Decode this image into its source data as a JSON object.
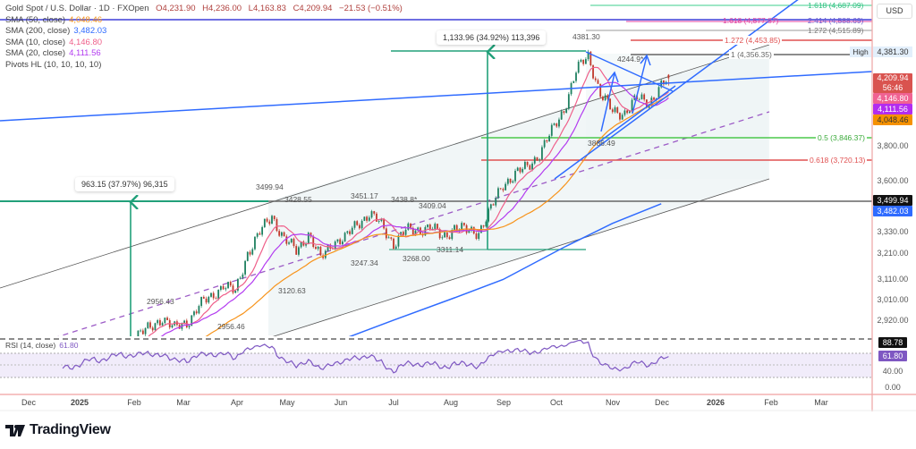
{
  "header": {
    "title": "Gold Spot / U.S. Dollar · 1D · FXOpen",
    "open": "O4,231.90",
    "high": "H4,236.00",
    "low": "L4,163.83",
    "close": "C4,209.94",
    "change": "−21.53 (−0.51%)"
  },
  "indicators": [
    {
      "name": "SMA (50, close)",
      "value": "4,048.46",
      "color": "#f7931a"
    },
    {
      "name": "SMA (200, close)",
      "value": "3,482.03",
      "color": "#2f6bff"
    },
    {
      "name": "SMA (10, close)",
      "value": "4,146.80",
      "color": "#ef5f8a"
    },
    {
      "name": "SMA (20, close)",
      "value": "4,111.56",
      "color": "#b33cf0"
    },
    {
      "name": "Pivots HL (10, 10, 10, 10)",
      "value": "",
      "color": "#444"
    }
  ],
  "currency": "USD",
  "price_axis": {
    "ticks": [
      "3,800.00",
      "3,600.00",
      "3,330.00",
      "3,210.00",
      "3,110.00",
      "3,010.00",
      "2,920.00"
    ],
    "tags": {
      "high": "4,381.30",
      "high_label": "High",
      "last": "4,209.94",
      "countdown": "56:46",
      "sma10": "4,146.80",
      "sma20": "4,111.56",
      "sma50": "4,048.46",
      "level": "3,499.94",
      "sma200": "3,482.03"
    }
  },
  "rsi": {
    "label": "RSI (14, close)",
    "value": "61.80",
    "max_tag": "88.78",
    "ticks": [
      "40.00",
      "0.00"
    ]
  },
  "time_axis": [
    "Dec",
    "2025",
    "Feb",
    "Mar",
    "Apr",
    "May",
    "Jun",
    "Jul",
    "Aug",
    "Sep",
    "Oct",
    "Nov",
    "Dec",
    "2026",
    "Feb",
    "Mar"
  ],
  "annotations": {
    "measure_1": "1,133.96 (34.92%) 113,396",
    "measure_2": "963.15 (37.97%) 96,315",
    "pivots": [
      "4381.30",
      "4244.9*",
      "3886.49",
      "3499.94",
      "3428.55",
      "3451.17",
      "3438.8*",
      "3409.04",
      "3311.14",
      "3268.00",
      "3247.34",
      "3120.63",
      "2956.43",
      "2956.46"
    ],
    "fibs": {
      "f1618g": "1.618 (4,687.09)",
      "f1618p": "1.618 (4,577.87)",
      "f2414": "2.414 (4,588.69)",
      "f1272g": "1.272 (4,515.89)",
      "f1272r": "1.272 (4,453.85)",
      "f1": "1 (4,356.35)",
      "f05": "0.5 (3,846.37)",
      "f0618": "0.618 (3,720.13)"
    }
  },
  "colors": {
    "up": "#1e8060",
    "down": "#c0392b",
    "rsi": "#7e57c2",
    "measure": "#22a07a",
    "trend": "#2f6bff"
  },
  "brand": "TradingView",
  "chart_data": {
    "type": "candlestick",
    "title": "Gold Spot / U.S. Dollar · 1D · FXOpen",
    "scale": "log",
    "ylim": [
      2853,
      4750
    ],
    "x_start": "Dec 2024",
    "weekly_closes": [
      2640,
      2650,
      2620,
      2630,
      2640,
      2690,
      2710,
      2770,
      2800,
      2860,
      2880,
      2935,
      2880,
      2910,
      2985,
      3020,
      3085,
      3040,
      3235,
      3330,
      3420,
      3300,
      3240,
      3330,
      3200,
      3290,
      3300,
      3380,
      3430,
      3370,
      3280,
      3340,
      3350,
      3360,
      3310,
      3360,
      3340,
      3340,
      3450,
      3590,
      3640,
      3680,
      3760,
      3880,
      4020,
      4250,
      4360,
      4110,
      4000,
      4000,
      4080,
      4060,
      4160
    ],
    "last_bar": {
      "open": 4231.9,
      "high": 4236.0,
      "low": 4163.83,
      "close": 4209.94
    },
    "sma200_weekly": [
      [
        26,
        2840
      ],
      [
        30,
        2920
      ],
      [
        35,
        3020
      ],
      [
        39,
        3105
      ],
      [
        44,
        3260
      ],
      [
        48,
        3380
      ],
      [
        52,
        3482
      ]
    ],
    "rsi_range": [
      0,
      100
    ]
  }
}
